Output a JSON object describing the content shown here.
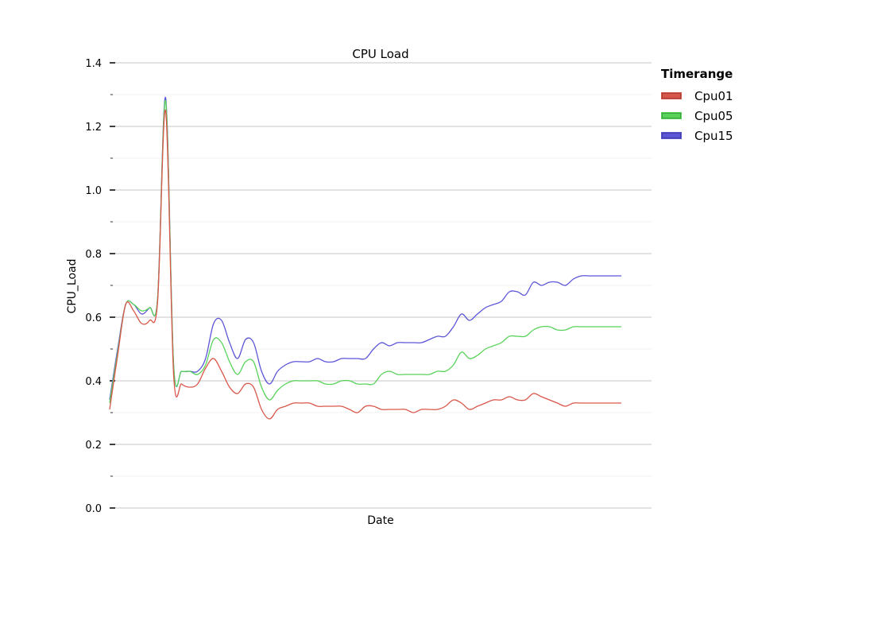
{
  "chart_data": {
    "type": "line",
    "title": "CPU Load",
    "xlabel": "Date",
    "ylabel": "CPU_Load",
    "ylim": [
      0,
      1.4
    ],
    "yticks": [
      "0.0",
      "0.2",
      "0.4",
      "0.6",
      "0.8",
      "1.0",
      "1.2",
      "1.4"
    ],
    "grid": true,
    "legend": {
      "title": "Timerange",
      "placement": "right, outside"
    },
    "x": [
      0,
      1,
      2,
      3,
      4,
      5,
      6,
      7,
      8,
      9,
      10,
      11,
      12,
      13,
      14,
      15,
      16,
      17,
      18,
      19,
      20,
      21,
      22,
      23,
      24,
      25,
      26,
      27,
      28,
      29,
      30,
      31,
      32,
      33,
      34,
      35,
      36,
      37,
      38,
      39,
      40,
      41,
      42,
      43,
      44,
      45,
      46,
      47,
      48,
      49,
      50,
      51,
      52,
      53,
      54,
      55,
      56,
      57,
      58,
      59,
      60,
      61,
      62,
      63,
      64
    ],
    "series": [
      {
        "name": "Cpu01",
        "color": "#d9574a",
        "values": [
          0.31,
          0.48,
          0.64,
          0.62,
          0.58,
          0.59,
          0.65,
          1.25,
          0.42,
          0.39,
          0.38,
          0.39,
          0.44,
          0.47,
          0.43,
          0.38,
          0.36,
          0.39,
          0.38,
          0.31,
          0.28,
          0.31,
          0.32,
          0.33,
          0.33,
          0.33,
          0.32,
          0.32,
          0.32,
          0.32,
          0.31,
          0.3,
          0.32,
          0.32,
          0.31,
          0.31,
          0.31,
          0.31,
          0.3,
          0.31,
          0.31,
          0.31,
          0.32,
          0.34,
          0.33,
          0.31,
          0.32,
          0.33,
          0.34,
          0.34,
          0.35,
          0.34,
          0.34,
          0.36,
          0.35,
          0.34,
          0.33,
          0.32,
          0.33,
          0.33,
          0.33,
          0.33,
          0.33,
          0.33,
          0.33
        ]
      },
      {
        "name": "Cpu05",
        "color": "#58d35a",
        "values": [
          0.33,
          0.49,
          0.64,
          0.64,
          0.62,
          0.63,
          0.66,
          1.28,
          0.45,
          0.43,
          0.43,
          0.42,
          0.45,
          0.53,
          0.52,
          0.46,
          0.42,
          0.46,
          0.46,
          0.38,
          0.34,
          0.37,
          0.39,
          0.4,
          0.4,
          0.4,
          0.4,
          0.39,
          0.39,
          0.4,
          0.4,
          0.39,
          0.39,
          0.39,
          0.42,
          0.43,
          0.42,
          0.42,
          0.42,
          0.42,
          0.42,
          0.43,
          0.43,
          0.45,
          0.49,
          0.47,
          0.48,
          0.5,
          0.51,
          0.52,
          0.54,
          0.54,
          0.54,
          0.56,
          0.57,
          0.57,
          0.56,
          0.56,
          0.57,
          0.57,
          0.57,
          0.57,
          0.57,
          0.57,
          0.57
        ]
      },
      {
        "name": "Cpu15",
        "color": "#5b55d8",
        "values": [
          0.34,
          0.5,
          0.64,
          0.64,
          0.61,
          0.63,
          0.66,
          1.29,
          0.45,
          0.43,
          0.43,
          0.43,
          0.47,
          0.58,
          0.59,
          0.52,
          0.47,
          0.53,
          0.52,
          0.43,
          0.39,
          0.43,
          0.45,
          0.46,
          0.46,
          0.46,
          0.47,
          0.46,
          0.46,
          0.47,
          0.47,
          0.47,
          0.47,
          0.5,
          0.52,
          0.51,
          0.52,
          0.52,
          0.52,
          0.52,
          0.53,
          0.54,
          0.54,
          0.57,
          0.61,
          0.59,
          0.61,
          0.63,
          0.64,
          0.65,
          0.68,
          0.68,
          0.67,
          0.71,
          0.7,
          0.71,
          0.71,
          0.7,
          0.72,
          0.73,
          0.73,
          0.73,
          0.73,
          0.73,
          0.73
        ]
      }
    ]
  }
}
